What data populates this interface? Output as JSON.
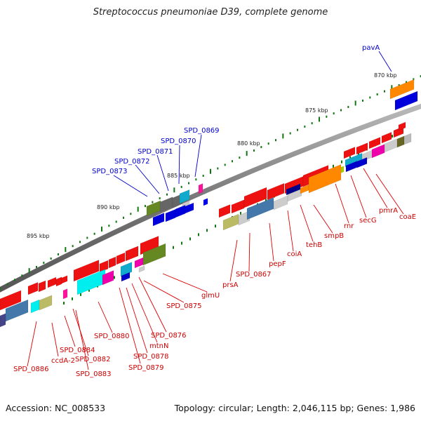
{
  "title": "Streptococcus pneumoniae D39, complete genome",
  "footer": {
    "accession": "Accession: NC_008533",
    "topology": "Topology: circular; Length: 2,046,115 bp; Genes: 1,986"
  },
  "colors": {
    "backbone": "#888888",
    "gene_red": "#ee1111",
    "label_red": "#cc0000",
    "label_blue": "#0000cc",
    "tick_green": "#117711"
  },
  "scale_labels": [
    "870 kbp",
    "875 kbp",
    "880 kbp",
    "885 kbp",
    "890 kbp",
    "895 kbp"
  ],
  "top_labels": [
    "pavA",
    "SPD_0869",
    "SPD_0870",
    "SPD_0871",
    "SPD_0872",
    "SPD_0873"
  ],
  "bottom_labels": [
    "coaE",
    "pmrA",
    "secG",
    "rnr",
    "smpB",
    "tehB",
    "coiA",
    "pepF",
    "SPD_0867",
    "prsA",
    "glmU",
    "SPD_0875",
    "SPD_0876",
    "mtnN",
    "SPD_0878",
    "SPD_0879",
    "SPD_0880",
    "SPD_0884",
    "SPD_0882",
    "SPD_0883",
    "ccdA-2",
    "SPD_0886"
  ]
}
